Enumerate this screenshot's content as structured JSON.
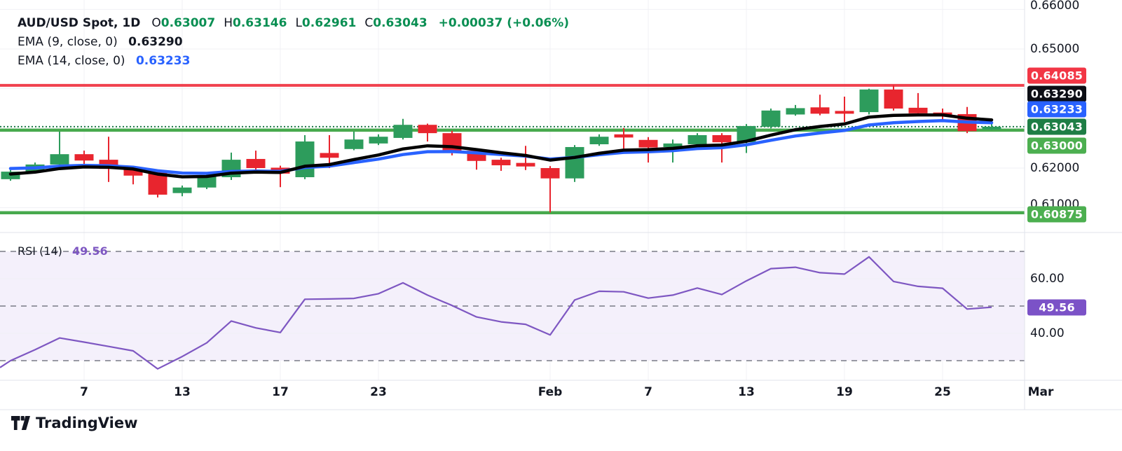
{
  "app": {
    "watermark_logo": "TradingView"
  },
  "legend": {
    "title": "AUD/USD Spot, 1D",
    "ohlc": {
      "o_label": "O",
      "o": "0.63007",
      "h_label": "H",
      "h": "0.63146",
      "l_label": "L",
      "l": "0.62961",
      "c_label": "C",
      "c": "0.63043",
      "change": "+0.00037 (+0.06%)"
    },
    "indicators": [
      {
        "label": "EMA (9, close, 0)",
        "value": "0.63290",
        "value_color": "#131722"
      },
      {
        "label": "EMA (14, close, 0)",
        "value": "0.63233",
        "value_color": "#2962FF"
      }
    ]
  },
  "price_axis": {
    "ticks": [
      {
        "label": "0.66000",
        "price": 0.66
      },
      {
        "label": "0.65000",
        "price": 0.65
      },
      {
        "label": "0.62000",
        "price": 0.62
      },
      {
        "label": "0.61000",
        "price": 0.61
      }
    ],
    "badges": [
      {
        "label": "0.64085",
        "value": 0.64085,
        "color": "#F23645",
        "text_color": "#ffffff"
      },
      {
        "label": "0.63290",
        "value": 0.6329,
        "color": "#0c0e15",
        "text_color": "#ffffff"
      },
      {
        "label": "0.63233",
        "value": 0.63233,
        "color": "#2962FF",
        "text_color": "#ffffff"
      },
      {
        "label": "0.63043",
        "value": 0.63043,
        "color": "#1E7E45",
        "text_color": "#ffffff"
      },
      {
        "label": "0.63000",
        "value": 0.63,
        "color": "#4CAF50",
        "text_color": "#ffffff"
      },
      {
        "label": "0.60875",
        "value": 0.60875,
        "color": "#4CAF50",
        "text_color": "#ffffff"
      }
    ]
  },
  "time_axis": {
    "labels": [
      {
        "text": "7",
        "index": 3
      },
      {
        "text": "13",
        "index": 7
      },
      {
        "text": "17",
        "index": 11
      },
      {
        "text": "23",
        "index": 15
      },
      {
        "text": "Feb",
        "index": 22
      },
      {
        "text": "7",
        "index": 26
      },
      {
        "text": "13",
        "index": 30
      },
      {
        "text": "19",
        "index": 34
      },
      {
        "text": "25",
        "index": 38
      },
      {
        "text": "Mar",
        "index": 42
      }
    ]
  },
  "levels": [
    {
      "price": 0.64085,
      "color": "#F0414E",
      "style": "solid",
      "width": 4
    },
    {
      "price": 0.63043,
      "color": "#1B7A45",
      "style": "dotted",
      "width": 2
    },
    {
      "price": 0.63,
      "color": "#47A94D",
      "style": "solid",
      "width": 4.5
    },
    {
      "price": 0.60875,
      "color": "#47A94D",
      "style": "solid",
      "width": 4.5
    }
  ],
  "chart_data": [
    {
      "type": "candlestick",
      "pane": "price",
      "title": "AUD/USD Spot, 1D",
      "up_color": "#2D9C5C",
      "down_color": "#E8252E",
      "y_range_hint": [
        0.6038,
        0.6597
      ],
      "candles": [
        {
          "t": "Jan 2",
          "o": 0.6172,
          "h": 0.6195,
          "l": 0.6168,
          "c": 0.6191
        },
        {
          "t": "Jan 3",
          "o": 0.6191,
          "h": 0.6214,
          "l": 0.6188,
          "c": 0.6209
        },
        {
          "t": "Jan 6",
          "o": 0.6209,
          "h": 0.6292,
          "l": 0.6196,
          "c": 0.6235
        },
        {
          "t": "Jan 7",
          "o": 0.6235,
          "h": 0.6244,
          "l": 0.62,
          "c": 0.6219
        },
        {
          "t": "Jan 8",
          "o": 0.6221,
          "h": 0.6279,
          "l": 0.6165,
          "c": 0.6198
        },
        {
          "t": "Jan 9",
          "o": 0.62,
          "h": 0.6202,
          "l": 0.6159,
          "c": 0.6181
        },
        {
          "t": "Jan 10",
          "o": 0.6191,
          "h": 0.6195,
          "l": 0.6126,
          "c": 0.6133
        },
        {
          "t": "Jan 13",
          "o": 0.6137,
          "h": 0.6156,
          "l": 0.6129,
          "c": 0.6151
        },
        {
          "t": "Jan 14",
          "o": 0.6151,
          "h": 0.6187,
          "l": 0.6147,
          "c": 0.6182
        },
        {
          "t": "Jan 15",
          "o": 0.6177,
          "h": 0.6239,
          "l": 0.617,
          "c": 0.6221
        },
        {
          "t": "Jan 16",
          "o": 0.6223,
          "h": 0.6244,
          "l": 0.6193,
          "c": 0.62
        },
        {
          "t": "Jan 17",
          "o": 0.6201,
          "h": 0.6206,
          "l": 0.6152,
          "c": 0.6186
        },
        {
          "t": "Jan 20",
          "o": 0.6177,
          "h": 0.6283,
          "l": 0.6172,
          "c": 0.6267
        },
        {
          "t": "Jan 21",
          "o": 0.6238,
          "h": 0.6283,
          "l": 0.62,
          "c": 0.6226
        },
        {
          "t": "Jan 22",
          "o": 0.6248,
          "h": 0.6292,
          "l": 0.6245,
          "c": 0.6272
        },
        {
          "t": "Jan 23",
          "o": 0.6262,
          "h": 0.6285,
          "l": 0.6258,
          "c": 0.6279
        },
        {
          "t": "Jan 24",
          "o": 0.6276,
          "h": 0.6324,
          "l": 0.6272,
          "c": 0.6309
        },
        {
          "t": "Jan 27",
          "o": 0.6309,
          "h": 0.6312,
          "l": 0.6267,
          "c": 0.6288
        },
        {
          "t": "Jan 28",
          "o": 0.6288,
          "h": 0.6294,
          "l": 0.6232,
          "c": 0.6244
        },
        {
          "t": "Jan 29",
          "o": 0.6244,
          "h": 0.625,
          "l": 0.6196,
          "c": 0.6218
        },
        {
          "t": "Jan 30",
          "o": 0.6221,
          "h": 0.6226,
          "l": 0.6193,
          "c": 0.6207
        },
        {
          "t": "Jan 31",
          "o": 0.6213,
          "h": 0.6256,
          "l": 0.6195,
          "c": 0.6204
        },
        {
          "t": "Feb 3",
          "o": 0.62,
          "h": 0.6205,
          "l": 0.6088,
          "c": 0.6174
        },
        {
          "t": "Feb 4",
          "o": 0.6174,
          "h": 0.6258,
          "l": 0.6165,
          "c": 0.6253
        },
        {
          "t": "Feb 5",
          "o": 0.626,
          "h": 0.6285,
          "l": 0.6256,
          "c": 0.6279
        },
        {
          "t": "Feb 6",
          "o": 0.6285,
          "h": 0.6301,
          "l": 0.6249,
          "c": 0.6277
        },
        {
          "t": "Feb 7",
          "o": 0.6271,
          "h": 0.6278,
          "l": 0.6214,
          "c": 0.6252
        },
        {
          "t": "Feb 10",
          "o": 0.6253,
          "h": 0.6272,
          "l": 0.6214,
          "c": 0.6262
        },
        {
          "t": "Feb 11",
          "o": 0.626,
          "h": 0.6288,
          "l": 0.6253,
          "c": 0.6283
        },
        {
          "t": "Feb 12",
          "o": 0.6283,
          "h": 0.6288,
          "l": 0.6214,
          "c": 0.6265
        },
        {
          "t": "Feb 13",
          "o": 0.6265,
          "h": 0.6311,
          "l": 0.6238,
          "c": 0.6306
        },
        {
          "t": "Feb 14",
          "o": 0.6304,
          "h": 0.635,
          "l": 0.63,
          "c": 0.6345
        },
        {
          "t": "Feb 17",
          "o": 0.6335,
          "h": 0.6359,
          "l": 0.6332,
          "c": 0.6351
        },
        {
          "t": "Feb 18",
          "o": 0.6353,
          "h": 0.6385,
          "l": 0.6333,
          "c": 0.6337
        },
        {
          "t": "Feb 19",
          "o": 0.6344,
          "h": 0.638,
          "l": 0.6316,
          "c": 0.6337
        },
        {
          "t": "Feb 20",
          "o": 0.6341,
          "h": 0.64,
          "l": 0.6335,
          "c": 0.6398
        },
        {
          "t": "Feb 21",
          "o": 0.6398,
          "h": 0.64085,
          "l": 0.6345,
          "c": 0.635
        },
        {
          "t": "Feb 24",
          "o": 0.6352,
          "h": 0.6389,
          "l": 0.6334,
          "c": 0.6338
        },
        {
          "t": "Feb 25",
          "o": 0.634,
          "h": 0.635,
          "l": 0.6317,
          "c": 0.6334
        },
        {
          "t": "Feb 26",
          "o": 0.6336,
          "h": 0.6354,
          "l": 0.6288,
          "c": 0.6293
        },
        {
          "t": "Feb 27",
          "o": 0.63007,
          "h": 0.63146,
          "l": 0.62961,
          "c": 0.63043
        }
      ]
    },
    {
      "type": "line",
      "pane": "price",
      "name": "EMA 9",
      "color": "#000000",
      "derive": "ema",
      "period": 9,
      "last_value": 0.6329
    },
    {
      "type": "line",
      "pane": "price",
      "name": "EMA 14",
      "color": "#2962FF",
      "derive": "ema",
      "period": 14,
      "last_value": 0.63233
    },
    {
      "type": "line",
      "pane": "rsi",
      "name": "RSI (14)",
      "color": "#7E57C2",
      "last_value": 49.56,
      "y_range_hint": [
        24,
        77
      ],
      "start_value": 27.5,
      "values": [
        30.0,
        34.0,
        38.3,
        36.8,
        35.2,
        33.6,
        27.0,
        31.5,
        36.5,
        44.5,
        42.0,
        40.3,
        52.5,
        52.6,
        52.8,
        54.5,
        58.5,
        54.0,
        50.2,
        46.0,
        44.2,
        43.3,
        39.4,
        52.2,
        55.4,
        55.2,
        52.9,
        54.0,
        56.6,
        54.2,
        59.2,
        63.7,
        64.2,
        62.2,
        61.7,
        68.0,
        59.0,
        57.2,
        56.5,
        48.9,
        49.56
      ]
    }
  ],
  "rsi_panel": {
    "label": "RSI (14)",
    "value": "49.56",
    "band": [
      30,
      70
    ],
    "mid": 50,
    "band_color": "#F4F0FB",
    "dash_color": "#787B86",
    "ticks": [
      {
        "label": "60.00",
        "value": 60
      },
      {
        "label": "40.00",
        "value": 40
      }
    ],
    "badge": {
      "label": "49.56",
      "value": 49.56,
      "color": "#7B52C7",
      "text_color": "#ffffff"
    }
  }
}
